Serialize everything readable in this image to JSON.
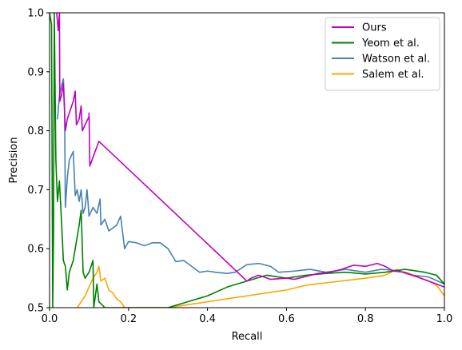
{
  "chart_data": {
    "type": "line",
    "title": "",
    "xlabel": "Recall",
    "ylabel": "Precision",
    "xlim": [
      0,
      1
    ],
    "ylim": [
      0.5,
      1
    ],
    "xticks": [
      0,
      0.2,
      0.4,
      0.6,
      0.8,
      1
    ],
    "xtick_labels": [
      "0.0",
      "0.2",
      "0.4",
      "0.6",
      "0.8",
      "1.0"
    ],
    "yticks": [
      0.5,
      0.6,
      0.7,
      0.8,
      0.9,
      1
    ],
    "ytick_labels": [
      "0.5",
      "0.6",
      "0.7",
      "0.8",
      "0.9",
      "1.0"
    ],
    "grid": false,
    "legend_position": "top-right",
    "series": [
      {
        "name": "Ours",
        "color": "#bf00bf",
        "points": [
          [
            0.018,
            1.0
          ],
          [
            0.022,
            0.97
          ],
          [
            0.025,
            1.0
          ],
          [
            0.026,
            0.85
          ],
          [
            0.03,
            0.86
          ],
          [
            0.035,
            0.88
          ],
          [
            0.04,
            0.8
          ],
          [
            0.045,
            0.82
          ],
          [
            0.05,
            0.83
          ],
          [
            0.06,
            0.85
          ],
          [
            0.065,
            0.867
          ],
          [
            0.068,
            0.81
          ],
          [
            0.075,
            0.82
          ],
          [
            0.08,
            0.842
          ],
          [
            0.083,
            0.8
          ],
          [
            0.09,
            0.81
          ],
          [
            0.1,
            0.824
          ],
          [
            0.1,
            0.83
          ],
          [
            0.102,
            0.74
          ],
          [
            0.11,
            0.755
          ],
          [
            0.12,
            0.773
          ],
          [
            0.125,
            0.782
          ],
          [
            0.5,
            0.545
          ],
          [
            0.51,
            0.55
          ],
          [
            0.53,
            0.555
          ],
          [
            0.56,
            0.548
          ],
          [
            0.6,
            0.55
          ],
          [
            0.62,
            0.548
          ],
          [
            0.65,
            0.553
          ],
          [
            0.68,
            0.558
          ],
          [
            0.71,
            0.56
          ],
          [
            0.74,
            0.565
          ],
          [
            0.77,
            0.572
          ],
          [
            0.8,
            0.57
          ],
          [
            0.83,
            0.575
          ],
          [
            0.85,
            0.57
          ],
          [
            0.87,
            0.562
          ],
          [
            0.9,
            0.56
          ],
          [
            0.92,
            0.555
          ],
          [
            0.94,
            0.55
          ],
          [
            0.96,
            0.545
          ],
          [
            0.98,
            0.54
          ],
          [
            1.0,
            0.535
          ]
        ]
      },
      {
        "name": "Yeom et al.",
        "color": "#008000",
        "points": [
          [
            0.0,
            1.0
          ],
          [
            0.005,
            0.98
          ],
          [
            0.008,
            0.5
          ],
          [
            0.01,
            0.62
          ],
          [
            0.012,
            1.0
          ],
          [
            0.016,
            0.75
          ],
          [
            0.02,
            0.68
          ],
          [
            0.025,
            0.715
          ],
          [
            0.03,
            0.65
          ],
          [
            0.035,
            0.58
          ],
          [
            0.04,
            0.57
          ],
          [
            0.045,
            0.53
          ],
          [
            0.05,
            0.56
          ],
          [
            0.06,
            0.58
          ],
          [
            0.065,
            0.6
          ],
          [
            0.07,
            0.62
          ],
          [
            0.075,
            0.64
          ],
          [
            0.08,
            0.665
          ],
          [
            0.085,
            0.56
          ],
          [
            0.09,
            0.55
          ],
          [
            0.1,
            0.56
          ],
          [
            0.11,
            0.58
          ],
          [
            0.112,
            0.5
          ],
          [
            0.12,
            0.54
          ],
          [
            0.125,
            0.51
          ],
          [
            0.14,
            0.5
          ],
          [
            0.3,
            0.5
          ],
          [
            0.35,
            0.51
          ],
          [
            0.4,
            0.52
          ],
          [
            0.45,
            0.535
          ],
          [
            0.5,
            0.545
          ],
          [
            0.55,
            0.555
          ],
          [
            0.6,
            0.55
          ],
          [
            0.65,
            0.555
          ],
          [
            0.7,
            0.558
          ],
          [
            0.75,
            0.56
          ],
          [
            0.8,
            0.557
          ],
          [
            0.85,
            0.56
          ],
          [
            0.9,
            0.565
          ],
          [
            0.95,
            0.56
          ],
          [
            0.98,
            0.555
          ],
          [
            1.0,
            0.54
          ]
        ]
      },
      {
        "name": "Watson et al.",
        "color": "#4682b4",
        "points": [
          [
            0.02,
            0.82
          ],
          [
            0.025,
            0.86
          ],
          [
            0.03,
            0.875
          ],
          [
            0.035,
            0.888
          ],
          [
            0.038,
            0.84
          ],
          [
            0.04,
            0.67
          ],
          [
            0.045,
            0.72
          ],
          [
            0.05,
            0.75
          ],
          [
            0.06,
            0.765
          ],
          [
            0.065,
            0.69
          ],
          [
            0.07,
            0.7
          ],
          [
            0.075,
            0.68
          ],
          [
            0.08,
            0.7
          ],
          [
            0.085,
            0.66
          ],
          [
            0.09,
            0.67
          ],
          [
            0.095,
            0.7
          ],
          [
            0.1,
            0.655
          ],
          [
            0.11,
            0.67
          ],
          [
            0.12,
            0.66
          ],
          [
            0.128,
            0.684
          ],
          [
            0.13,
            0.64
          ],
          [
            0.14,
            0.65
          ],
          [
            0.15,
            0.63
          ],
          [
            0.17,
            0.64
          ],
          [
            0.18,
            0.655
          ],
          [
            0.19,
            0.6
          ],
          [
            0.2,
            0.612
          ],
          [
            0.22,
            0.61
          ],
          [
            0.24,
            0.605
          ],
          [
            0.26,
            0.61
          ],
          [
            0.28,
            0.61
          ],
          [
            0.3,
            0.6
          ],
          [
            0.32,
            0.578
          ],
          [
            0.34,
            0.58
          ],
          [
            0.36,
            0.57
          ],
          [
            0.38,
            0.56
          ],
          [
            0.4,
            0.562
          ],
          [
            0.42,
            0.56
          ],
          [
            0.45,
            0.558
          ],
          [
            0.47,
            0.56
          ],
          [
            0.5,
            0.573
          ],
          [
            0.53,
            0.575
          ],
          [
            0.56,
            0.57
          ],
          [
            0.58,
            0.56
          ],
          [
            0.62,
            0.562
          ],
          [
            0.66,
            0.565
          ],
          [
            0.7,
            0.56
          ],
          [
            0.75,
            0.565
          ],
          [
            0.8,
            0.56
          ],
          [
            0.84,
            0.565
          ],
          [
            0.88,
            0.563
          ],
          [
            0.92,
            0.555
          ],
          [
            0.96,
            0.552
          ],
          [
            1.0,
            0.54
          ]
        ]
      },
      {
        "name": "Salem et al.",
        "color": "#ffa500",
        "points": [
          [
            0.07,
            0.5
          ],
          [
            0.09,
            0.52
          ],
          [
            0.1,
            0.535
          ],
          [
            0.11,
            0.55
          ],
          [
            0.115,
            0.555
          ],
          [
            0.12,
            0.56
          ],
          [
            0.125,
            0.57
          ],
          [
            0.13,
            0.545
          ],
          [
            0.14,
            0.55
          ],
          [
            0.15,
            0.53
          ],
          [
            0.16,
            0.525
          ],
          [
            0.17,
            0.515
          ],
          [
            0.18,
            0.51
          ],
          [
            0.19,
            0.5
          ],
          [
            0.3,
            0.5
          ],
          [
            0.35,
            0.505
          ],
          [
            0.4,
            0.51
          ],
          [
            0.45,
            0.515
          ],
          [
            0.5,
            0.52
          ],
          [
            0.55,
            0.525
          ],
          [
            0.6,
            0.53
          ],
          [
            0.65,
            0.538
          ],
          [
            0.7,
            0.542
          ],
          [
            0.75,
            0.546
          ],
          [
            0.8,
            0.55
          ],
          [
            0.85,
            0.555
          ],
          [
            0.88,
            0.565
          ],
          [
            0.9,
            0.558
          ],
          [
            0.93,
            0.552
          ],
          [
            0.96,
            0.545
          ],
          [
            0.98,
            0.538
          ],
          [
            1.0,
            0.52
          ]
        ]
      }
    ]
  }
}
